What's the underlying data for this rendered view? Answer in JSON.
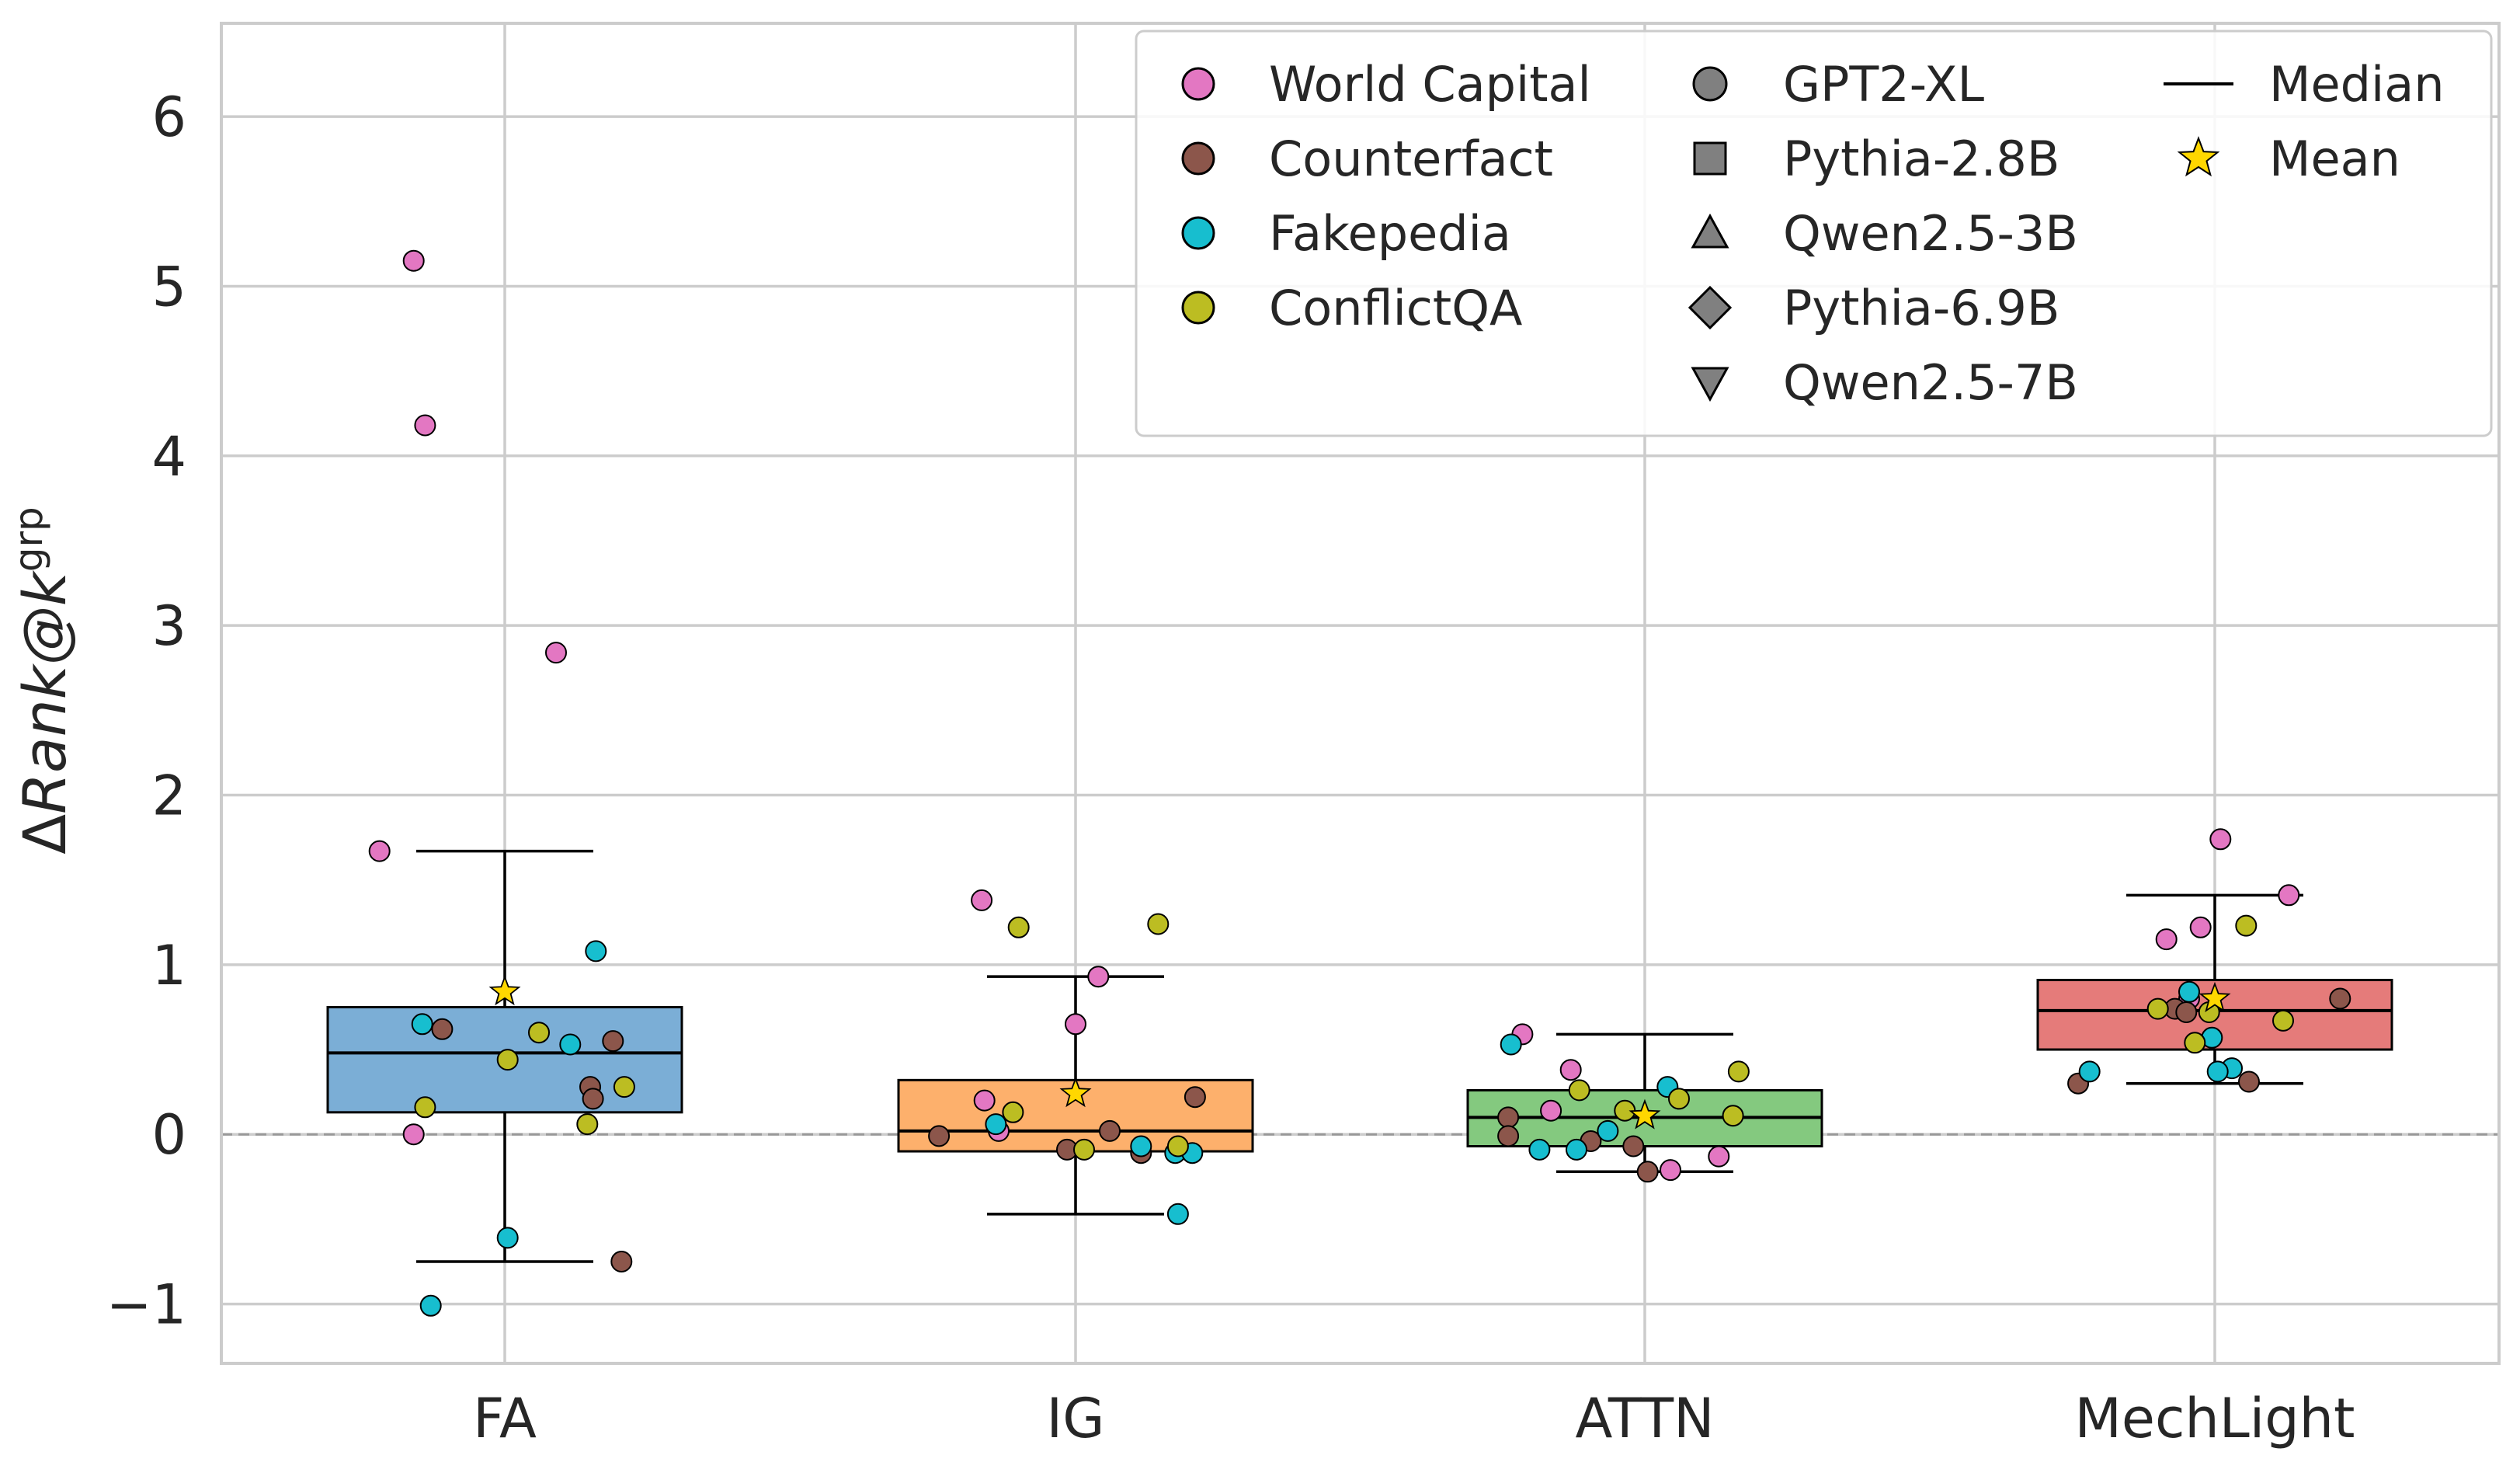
{
  "chart_data": {
    "type": "box",
    "title": "",
    "xlabel": "",
    "ylabel": {
      "delta": "Δ",
      "main": "Rank@k",
      "superscript": "grp"
    },
    "ylim": [
      -1.35,
      6.55
    ],
    "yticks": [
      -1,
      0,
      1,
      2,
      3,
      4,
      5,
      6
    ],
    "ytick_labels": [
      "−1",
      "0",
      "1",
      "2",
      "3",
      "4",
      "5",
      "6"
    ],
    "grid": true,
    "reference_line": 0,
    "categories": [
      "FA",
      "IG",
      "ATTN",
      "MechLight"
    ],
    "box_colors": [
      "#7baed6",
      "#fdb06c",
      "#84c97f",
      "#e57b7a"
    ],
    "boxes": [
      {
        "name": "FA",
        "whisker_low": -0.75,
        "q1": 0.13,
        "median": 0.48,
        "q3": 0.75,
        "whisker_high": 1.67,
        "mean": 0.84
      },
      {
        "name": "IG",
        "whisker_low": -0.47,
        "q1": -0.1,
        "median": 0.02,
        "q3": 0.32,
        "whisker_high": 0.93,
        "mean": 0.24
      },
      {
        "name": "ATTN",
        "whisker_low": -0.22,
        "q1": -0.07,
        "median": 0.1,
        "q3": 0.26,
        "whisker_high": 0.59,
        "mean": 0.11
      },
      {
        "name": "MechLight",
        "whisker_low": 0.3,
        "q1": 0.5,
        "median": 0.73,
        "q3": 0.91,
        "whisker_high": 1.41,
        "mean": 0.8
      }
    ],
    "datasets": [
      {
        "name": "World Capital",
        "color": "#e377c2"
      },
      {
        "name": "Counterfact",
        "color": "#8c564b"
      },
      {
        "name": "Fakepedia",
        "color": "#17becf"
      },
      {
        "name": "ConflictQA",
        "color": "#bcbd22"
      }
    ],
    "models": [
      {
        "name": "GPT2-XL",
        "marker": "circle"
      },
      {
        "name": "Pythia-2.8B",
        "marker": "square"
      },
      {
        "name": "Qwen2.5-3B",
        "marker": "triangle-up"
      },
      {
        "name": "Pythia-6.9B",
        "marker": "diamond"
      },
      {
        "name": "Qwen2.5-7B",
        "marker": "triangle-down"
      }
    ],
    "stats_legend": [
      {
        "name": "Median",
        "marker": "line"
      },
      {
        "name": "Mean",
        "marker": "star",
        "color": "#ffd700"
      }
    ],
    "points": [
      {
        "method": "FA",
        "dataset": "World Capital",
        "x_offset": -0.16,
        "value": 5.15
      },
      {
        "method": "FA",
        "dataset": "World Capital",
        "x_offset": -0.14,
        "value": 4.18
      },
      {
        "method": "FA",
        "dataset": "World Capital",
        "x_offset": 0.09,
        "value": 2.84
      },
      {
        "method": "FA",
        "dataset": "World Capital",
        "x_offset": -0.22,
        "value": 1.67
      },
      {
        "method": "FA",
        "dataset": "World Capital",
        "x_offset": -0.16,
        "value": 0.0
      },
      {
        "method": "FA",
        "dataset": "Counterfact",
        "x_offset": -0.11,
        "value": 0.62
      },
      {
        "method": "FA",
        "dataset": "Counterfact",
        "x_offset": 0.19,
        "value": 0.55
      },
      {
        "method": "FA",
        "dataset": "Counterfact",
        "x_offset": 0.15,
        "value": 0.28
      },
      {
        "method": "FA",
        "dataset": "Counterfact",
        "x_offset": 0.155,
        "value": 0.21
      },
      {
        "method": "FA",
        "dataset": "Counterfact",
        "x_offset": 0.205,
        "value": -0.75
      },
      {
        "method": "FA",
        "dataset": "Fakepedia",
        "x_offset": 0.16,
        "value": 1.08
      },
      {
        "method": "FA",
        "dataset": "Fakepedia",
        "x_offset": -0.145,
        "value": 0.65
      },
      {
        "method": "FA",
        "dataset": "Fakepedia",
        "x_offset": 0.115,
        "value": 0.53
      },
      {
        "method": "FA",
        "dataset": "Fakepedia",
        "x_offset": 0.005,
        "value": -0.61
      },
      {
        "method": "FA",
        "dataset": "Fakepedia",
        "x_offset": -0.13,
        "value": -1.01
      },
      {
        "method": "FA",
        "dataset": "ConflictQA",
        "x_offset": 0.06,
        "value": 0.6
      },
      {
        "method": "FA",
        "dataset": "ConflictQA",
        "x_offset": 0.005,
        "value": 0.44
      },
      {
        "method": "FA",
        "dataset": "ConflictQA",
        "x_offset": 0.21,
        "value": 0.28
      },
      {
        "method": "FA",
        "dataset": "ConflictQA",
        "x_offset": -0.14,
        "value": 0.16
      },
      {
        "method": "FA",
        "dataset": "ConflictQA",
        "x_offset": 0.145,
        "value": 0.06
      },
      {
        "method": "IG",
        "dataset": "World Capital",
        "x_offset": -0.165,
        "value": 1.38
      },
      {
        "method": "IG",
        "dataset": "World Capital",
        "x_offset": 0.04,
        "value": 0.93
      },
      {
        "method": "IG",
        "dataset": "World Capital",
        "x_offset": 0.0,
        "value": 0.65
      },
      {
        "method": "IG",
        "dataset": "World Capital",
        "x_offset": -0.16,
        "value": 0.2
      },
      {
        "method": "IG",
        "dataset": "World Capital",
        "x_offset": -0.135,
        "value": 0.02
      },
      {
        "method": "IG",
        "dataset": "Counterfact",
        "x_offset": 0.21,
        "value": 0.22
      },
      {
        "method": "IG",
        "dataset": "Counterfact",
        "x_offset": 0.06,
        "value": 0.02
      },
      {
        "method": "IG",
        "dataset": "Counterfact",
        "x_offset": -0.24,
        "value": -0.01
      },
      {
        "method": "IG",
        "dataset": "Counterfact",
        "x_offset": -0.015,
        "value": -0.09
      },
      {
        "method": "IG",
        "dataset": "Counterfact",
        "x_offset": 0.115,
        "value": -0.11
      },
      {
        "method": "IG",
        "dataset": "Fakepedia",
        "x_offset": -0.14,
        "value": 0.06
      },
      {
        "method": "IG",
        "dataset": "Fakepedia",
        "x_offset": 0.115,
        "value": -0.07
      },
      {
        "method": "IG",
        "dataset": "Fakepedia",
        "x_offset": 0.175,
        "value": -0.11
      },
      {
        "method": "IG",
        "dataset": "Fakepedia",
        "x_offset": 0.205,
        "value": -0.11
      },
      {
        "method": "IG",
        "dataset": "Fakepedia",
        "x_offset": 0.18,
        "value": -0.47
      },
      {
        "method": "IG",
        "dataset": "ConflictQA",
        "x_offset": -0.1,
        "value": 1.22
      },
      {
        "method": "IG",
        "dataset": "ConflictQA",
        "x_offset": 0.145,
        "value": 1.24
      },
      {
        "method": "IG",
        "dataset": "ConflictQA",
        "x_offset": -0.11,
        "value": 0.13
      },
      {
        "method": "IG",
        "dataset": "ConflictQA",
        "x_offset": 0.015,
        "value": -0.09
      },
      {
        "method": "IG",
        "dataset": "ConflictQA",
        "x_offset": 0.18,
        "value": -0.07
      },
      {
        "method": "ATTN",
        "dataset": "World Capital",
        "x_offset": -0.215,
        "value": 0.59
      },
      {
        "method": "ATTN",
        "dataset": "World Capital",
        "x_offset": -0.13,
        "value": 0.38
      },
      {
        "method": "ATTN",
        "dataset": "World Capital",
        "x_offset": -0.165,
        "value": 0.14
      },
      {
        "method": "ATTN",
        "dataset": "World Capital",
        "x_offset": 0.045,
        "value": -0.21
      },
      {
        "method": "ATTN",
        "dataset": "World Capital",
        "x_offset": 0.13,
        "value": -0.13
      },
      {
        "method": "ATTN",
        "dataset": "Counterfact",
        "x_offset": -0.24,
        "value": 0.1
      },
      {
        "method": "ATTN",
        "dataset": "Counterfact",
        "x_offset": -0.24,
        "value": -0.01
      },
      {
        "method": "ATTN",
        "dataset": "Counterfact",
        "x_offset": -0.095,
        "value": -0.04
      },
      {
        "method": "ATTN",
        "dataset": "Counterfact",
        "x_offset": -0.02,
        "value": -0.07
      },
      {
        "method": "ATTN",
        "dataset": "Counterfact",
        "x_offset": 0.005,
        "value": -0.22
      },
      {
        "method": "ATTN",
        "dataset": "Fakepedia",
        "x_offset": -0.235,
        "value": 0.53
      },
      {
        "method": "ATTN",
        "dataset": "Fakepedia",
        "x_offset": 0.04,
        "value": 0.28
      },
      {
        "method": "ATTN",
        "dataset": "Fakepedia",
        "x_offset": -0.065,
        "value": 0.02
      },
      {
        "method": "ATTN",
        "dataset": "Fakepedia",
        "x_offset": -0.185,
        "value": -0.09
      },
      {
        "method": "ATTN",
        "dataset": "Fakepedia",
        "x_offset": -0.12,
        "value": -0.09
      },
      {
        "method": "ATTN",
        "dataset": "ConflictQA",
        "x_offset": 0.165,
        "value": 0.37
      },
      {
        "method": "ATTN",
        "dataset": "ConflictQA",
        "x_offset": -0.115,
        "value": 0.26
      },
      {
        "method": "ATTN",
        "dataset": "ConflictQA",
        "x_offset": 0.06,
        "value": 0.21
      },
      {
        "method": "ATTN",
        "dataset": "ConflictQA",
        "x_offset": -0.035,
        "value": 0.14
      },
      {
        "method": "ATTN",
        "dataset": "ConflictQA",
        "x_offset": 0.155,
        "value": 0.11
      },
      {
        "method": "MechLight",
        "dataset": "World Capital",
        "x_offset": 0.01,
        "value": 1.74
      },
      {
        "method": "MechLight",
        "dataset": "World Capital",
        "x_offset": 0.13,
        "value": 1.41
      },
      {
        "method": "MechLight",
        "dataset": "World Capital",
        "x_offset": -0.025,
        "value": 1.22
      },
      {
        "method": "MechLight",
        "dataset": "World Capital",
        "x_offset": -0.085,
        "value": 1.15
      },
      {
        "method": "MechLight",
        "dataset": "World Capital",
        "x_offset": -0.045,
        "value": 0.8
      },
      {
        "method": "MechLight",
        "dataset": "Counterfact",
        "x_offset": 0.22,
        "value": 0.8
      },
      {
        "method": "MechLight",
        "dataset": "Counterfact",
        "x_offset": -0.07,
        "value": 0.74
      },
      {
        "method": "MechLight",
        "dataset": "Counterfact",
        "x_offset": -0.24,
        "value": 0.3
      },
      {
        "method": "MechLight",
        "dataset": "Counterfact",
        "x_offset": 0.06,
        "value": 0.31
      },
      {
        "method": "MechLight",
        "dataset": "Counterfact",
        "x_offset": -0.05,
        "value": 0.72
      },
      {
        "method": "MechLight",
        "dataset": "Fakepedia",
        "x_offset": -0.045,
        "value": 0.84
      },
      {
        "method": "MechLight",
        "dataset": "Fakepedia",
        "x_offset": -0.005,
        "value": 0.57
      },
      {
        "method": "MechLight",
        "dataset": "Fakepedia",
        "x_offset": -0.22,
        "value": 0.37
      },
      {
        "method": "MechLight",
        "dataset": "Fakepedia",
        "x_offset": 0.03,
        "value": 0.39
      },
      {
        "method": "MechLight",
        "dataset": "Fakepedia",
        "x_offset": 0.005,
        "value": 0.37
      },
      {
        "method": "MechLight",
        "dataset": "ConflictQA",
        "x_offset": 0.055,
        "value": 1.23
      },
      {
        "method": "MechLight",
        "dataset": "ConflictQA",
        "x_offset": -0.1,
        "value": 0.74
      },
      {
        "method": "MechLight",
        "dataset": "ConflictQA",
        "x_offset": -0.01,
        "value": 0.72
      },
      {
        "method": "MechLight",
        "dataset": "ConflictQA",
        "x_offset": 0.12,
        "value": 0.67
      },
      {
        "method": "MechLight",
        "dataset": "ConflictQA",
        "x_offset": -0.035,
        "value": 0.54
      }
    ]
  }
}
